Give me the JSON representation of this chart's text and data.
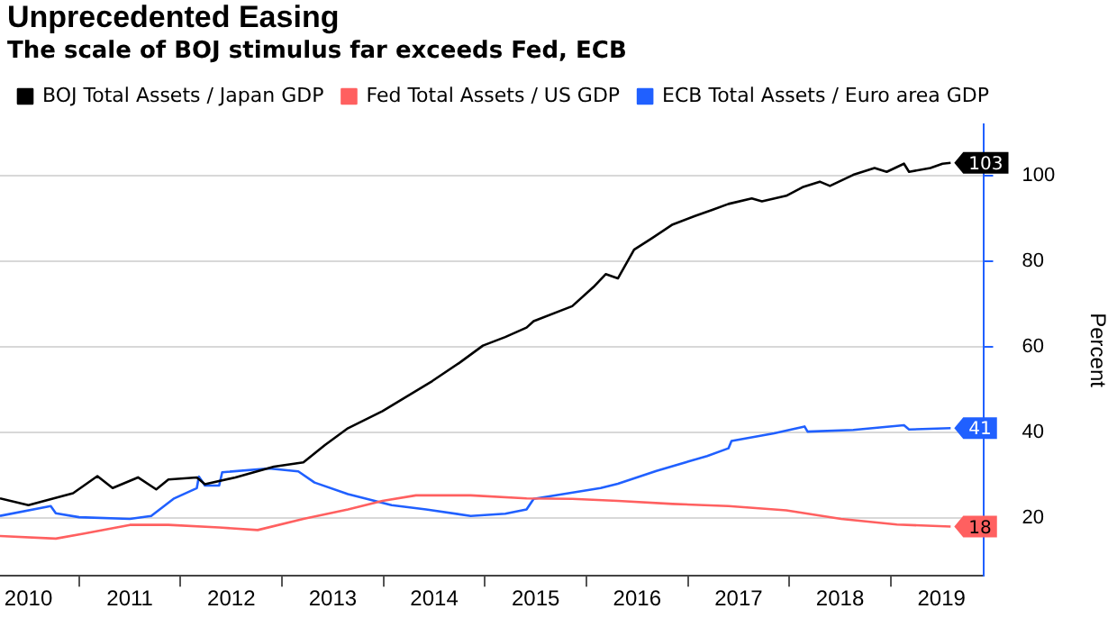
{
  "chart_data": {
    "type": "line",
    "title": "Unprecedented Easing",
    "subtitle": "The scale of BOJ stimulus far exceeds Fed, ECB",
    "ylabel": "Percent",
    "xlim": [
      2010.22,
      2019.92
    ],
    "xticks": [
      {
        "value": 2011,
        "label": null
      },
      {
        "value": 2012,
        "label": null
      },
      {
        "value": 2013,
        "label": null
      },
      {
        "value": 2014,
        "label": null
      },
      {
        "value": 2015,
        "label": null
      },
      {
        "value": 2016,
        "label": null
      },
      {
        "value": 2017,
        "label": null
      },
      {
        "value": 2018,
        "label": null
      },
      {
        "value": 2019,
        "label": null
      },
      {
        "value": 2010.5,
        "label": "2010"
      },
      {
        "value": 2011.5,
        "label": "2011"
      },
      {
        "value": 2012.5,
        "label": "2012"
      },
      {
        "value": 2013.5,
        "label": "2013"
      },
      {
        "value": 2014.5,
        "label": "2014"
      },
      {
        "value": 2015.5,
        "label": "2015"
      },
      {
        "value": 2016.5,
        "label": "2016"
      },
      {
        "value": 2017.5,
        "label": "2017"
      },
      {
        "value": 2018.5,
        "label": "2018"
      },
      {
        "value": 2019.5,
        "label": "2019"
      }
    ],
    "ylim": [
      6.5,
      112
    ],
    "yticks": [
      20,
      40,
      60,
      80,
      100
    ],
    "grid": "y",
    "legend": "top left",
    "marker": "none",
    "line_style": "solid",
    "series": [
      {
        "name": "BOJ Total Assets / Japan GDP",
        "color": "#000000",
        "x": [
          2010.22,
          2010.5,
          2010.94,
          2011.18,
          2011.33,
          2011.58,
          2011.76,
          2011.88,
          2012.16,
          2012.24,
          2012.54,
          2012.92,
          2013.21,
          2013.42,
          2013.65,
          2013.99,
          2014.2,
          2014.48,
          2014.75,
          2014.98,
          2015.2,
          2015.41,
          2015.48,
          2015.86,
          2016.07,
          2016.19,
          2016.31,
          2016.47,
          2016.64,
          2016.85,
          2017.07,
          2017.24,
          2017.4,
          2017.63,
          2017.73,
          2017.97,
          2018.13,
          2018.3,
          2018.4,
          2018.63,
          2018.84,
          2018.96,
          2019.13,
          2019.18,
          2019.39,
          2019.51,
          2019.59
        ],
        "values": [
          24.6,
          23,
          25.8,
          29.8,
          27,
          29.5,
          26.7,
          29,
          29.5,
          27.9,
          29.5,
          32,
          33,
          37,
          41,
          45,
          48,
          52,
          56.3,
          60.3,
          62.3,
          64.5,
          66,
          69.5,
          74,
          77,
          76,
          82.7,
          85.3,
          88.6,
          90.6,
          92,
          93.4,
          94.7,
          94,
          95.3,
          97.3,
          98.6,
          97.6,
          100.2,
          101.8,
          100.9,
          102.8,
          100.9,
          101.8,
          102.8,
          103
        ],
        "value_labels": [
          null,
          null,
          null,
          null,
          null,
          null,
          null,
          null,
          null,
          null,
          null,
          null,
          null,
          null,
          null,
          null,
          null,
          null,
          null,
          null,
          null,
          null,
          null,
          null,
          null,
          null,
          null,
          null,
          null,
          null,
          null,
          null,
          null,
          null,
          null,
          null,
          null,
          null,
          null,
          null,
          null,
          null,
          null,
          null,
          null,
          null,
          "103"
        ]
      },
      {
        "name": "Fed Total Assets / US GDP",
        "color": "#ff6060",
        "x": [
          2010.22,
          2010.77,
          2011.05,
          2011.5,
          2011.88,
          2012.38,
          2012.76,
          2013.21,
          2013.65,
          2013.99,
          2014.32,
          2014.86,
          2015.41,
          2015.86,
          2016.31,
          2016.85,
          2017.4,
          2017.97,
          2018.51,
          2019.06,
          2019.59
        ],
        "values": [
          15.8,
          15.2,
          16.4,
          18.4,
          18.4,
          17.8,
          17.2,
          19.8,
          22,
          24,
          25.3,
          25.3,
          24.6,
          24.5,
          24,
          23.3,
          22.8,
          21.8,
          19.8,
          18.5,
          18
        ],
        "value_labels": [
          null,
          null,
          null,
          null,
          null,
          null,
          null,
          null,
          null,
          null,
          null,
          null,
          null,
          null,
          null,
          null,
          null,
          null,
          null,
          null,
          "18"
        ]
      },
      {
        "name": "ECB Total Assets / Euro area GDP",
        "color": "#2060ff",
        "x": [
          2010.22,
          2010.72,
          2010.77,
          2011.0,
          2011.5,
          2011.71,
          2011.93,
          2012.16,
          2012.18,
          2012.24,
          2012.38,
          2012.41,
          2012.87,
          2013.16,
          2013.32,
          2013.65,
          2014.08,
          2014.42,
          2014.86,
          2015.2,
          2015.41,
          2015.48,
          2016.14,
          2016.31,
          2016.69,
          2017.19,
          2017.4,
          2017.43,
          2017.85,
          2018.15,
          2018.18,
          2018.63,
          2019.13,
          2019.18,
          2019.59
        ],
        "values": [
          20.5,
          22.8,
          21.1,
          20.2,
          19.8,
          20.5,
          24.5,
          27,
          29.7,
          27.6,
          27.6,
          30.7,
          31.6,
          30.9,
          28.3,
          25.6,
          23,
          22,
          20.5,
          21,
          22,
          24.5,
          27,
          28,
          31,
          34.5,
          36.3,
          38,
          39.8,
          41.4,
          40.2,
          40.6,
          41.7,
          40.7,
          41
        ],
        "value_labels": [
          null,
          null,
          null,
          null,
          null,
          null,
          null,
          null,
          null,
          null,
          null,
          null,
          null,
          null,
          null,
          null,
          null,
          null,
          null,
          null,
          null,
          null,
          null,
          null,
          null,
          null,
          null,
          null,
          null,
          null,
          null,
          null,
          null,
          null,
          "41"
        ]
      }
    ]
  }
}
